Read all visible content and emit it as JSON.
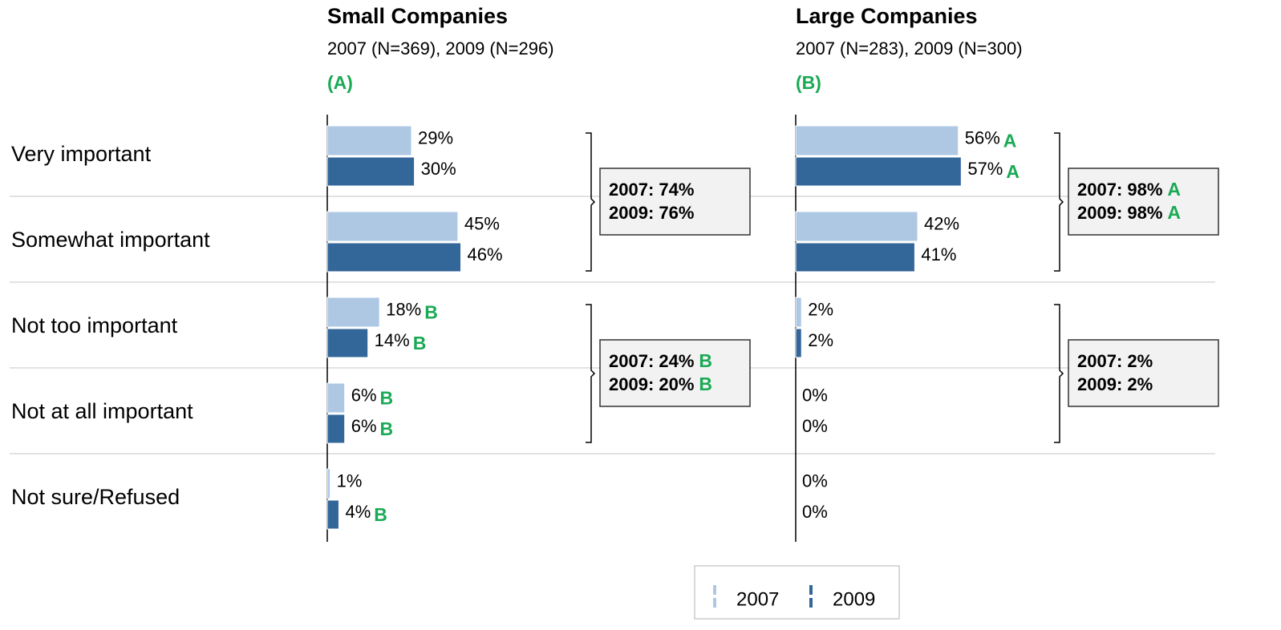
{
  "chart_data": [
    {
      "type": "bar",
      "title": "Small Companies",
      "subtitle": "2007 (N=369), 2009 (N=296)",
      "panel_label": "(A)",
      "categories": [
        "Very important",
        "Somewhat important",
        "Not too important",
        "Not at all important",
        "Not sure/Refused"
      ],
      "xlim": [
        0,
        100
      ],
      "series": [
        {
          "name": "2007",
          "color": "#aec8e4",
          "values": [
            29,
            45,
            18,
            6,
            1
          ],
          "value_labels": [
            "29%",
            "45%",
            "18%",
            "6%",
            "1%"
          ],
          "markers": [
            null,
            null,
            "B",
            "B",
            null
          ]
        },
        {
          "name": "2009",
          "color": "#336699",
          "values": [
            30,
            46,
            14,
            6,
            4
          ],
          "value_labels": [
            "30%",
            "46%",
            "14%",
            "6%",
            "4%"
          ],
          "markers": [
            null,
            null,
            "B",
            "B",
            "B"
          ]
        }
      ],
      "groups": [
        {
          "lines": [
            "2007: 74%",
            "2009: 76%"
          ],
          "markers": [
            null,
            null
          ]
        },
        {
          "lines": [
            "2007: 24%",
            "2009: 20%"
          ],
          "markers": [
            "B",
            "B"
          ]
        }
      ]
    },
    {
      "type": "bar",
      "title": "Large Companies",
      "subtitle": "2007 (N=283), 2009 (N=300)",
      "panel_label": "(B)",
      "xlim": [
        0,
        100
      ],
      "series": [
        {
          "color": "#aec8e4",
          "values": [
            56,
            42,
            2,
            0,
            0
          ],
          "value_labels": [
            "56%",
            "42%",
            "2%",
            "0%",
            "0%"
          ],
          "markers": [
            "A",
            null,
            null,
            null,
            null
          ]
        },
        {
          "color": "#336699",
          "values": [
            57,
            41,
            2,
            0,
            0
          ],
          "value_labels": [
            "57%",
            "41%",
            "2%",
            "0%",
            "0%"
          ],
          "markers": [
            "A",
            null,
            null,
            null,
            null
          ]
        }
      ],
      "groups": [
        {
          "lines": [
            "2007: 98%",
            "2009: 98%"
          ],
          "markers": [
            "A",
            "A"
          ]
        },
        {
          "lines": [
            "2007: 2%",
            "2009: 2%"
          ],
          "markers": [
            null,
            null
          ]
        }
      ]
    }
  ]
}
